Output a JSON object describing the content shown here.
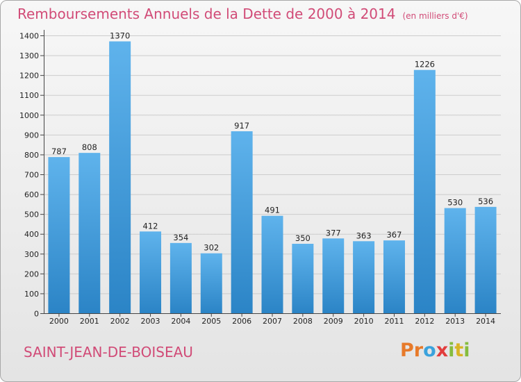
{
  "header": {
    "title": "Remboursements Annuels de la Dette de 2000 à 2014",
    "subtitle": "(en milliers d'€)"
  },
  "footer": {
    "city": "SAINT-JEAN-DE-BOISEAU",
    "logo_letters": [
      "P",
      "r",
      "o",
      "x",
      "i",
      "t",
      "i"
    ]
  },
  "colors": {
    "title": "#d14b77",
    "bar_light": "#5fb3ec",
    "bar_dark": "#2b84c6",
    "grid": "#cccccc",
    "logo": [
      "#e77a2a",
      "#e77a2a",
      "#3aa2dc",
      "#e23d3d",
      "#86bc3e",
      "#d9b425",
      "#86bc3e"
    ]
  },
  "chart_data": {
    "type": "bar",
    "title": "Remboursements Annuels de la Dette de 2000 à 2014",
    "subtitle": "(en milliers d'€)",
    "xlabel": "",
    "ylabel": "",
    "categories": [
      "2000",
      "2001",
      "2002",
      "2003",
      "2004",
      "2005",
      "2006",
      "2007",
      "2008",
      "2009",
      "2010",
      "2011",
      "2012",
      "2013",
      "2014"
    ],
    "values": [
      787,
      808,
      1370,
      412,
      354,
      302,
      917,
      491,
      350,
      377,
      363,
      367,
      1226,
      530,
      536
    ],
    "value_labels": [
      "787",
      "808",
      "1370",
      "412",
      "354",
      "302",
      "917",
      "491",
      "350",
      "377",
      "363",
      "367",
      "1226",
      "530",
      "536"
    ],
    "ylim": [
      0,
      1400
    ],
    "yticks": [
      "0",
      "100",
      "200",
      "300",
      "400",
      "500",
      "600",
      "700",
      "800",
      "900",
      "1000",
      "1100",
      "1200",
      "1300",
      "1400"
    ],
    "grid": true,
    "legend": "none"
  }
}
